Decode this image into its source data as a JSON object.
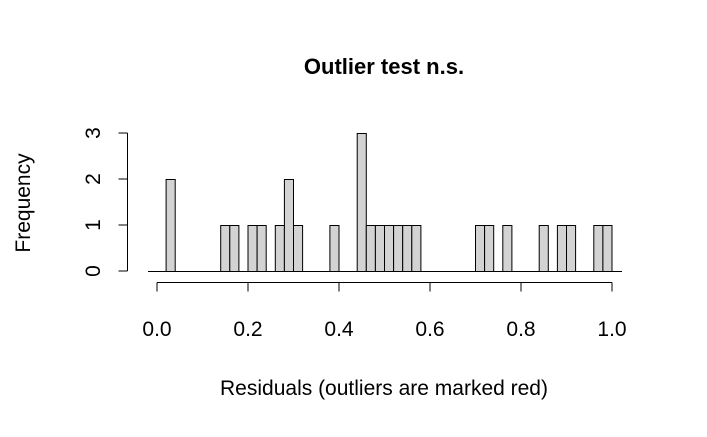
{
  "chart_data": {
    "type": "bar",
    "title": "Outlier test n.s.",
    "xlabel": "Residuals (outliers are marked red)",
    "ylabel": "Frequency",
    "xlim": [
      0,
      1
    ],
    "ylim": [
      0,
      3
    ],
    "bin_width": 0.02,
    "x_ticks": [
      "0.0",
      "0.2",
      "0.4",
      "0.6",
      "0.8",
      "1.0"
    ],
    "y_ticks": [
      "0",
      "1",
      "2",
      "3"
    ],
    "bins": [
      {
        "x0": 0.02,
        "count": 2
      },
      {
        "x0": 0.14,
        "count": 1
      },
      {
        "x0": 0.16,
        "count": 1
      },
      {
        "x0": 0.2,
        "count": 1
      },
      {
        "x0": 0.22,
        "count": 1
      },
      {
        "x0": 0.26,
        "count": 1
      },
      {
        "x0": 0.28,
        "count": 2
      },
      {
        "x0": 0.3,
        "count": 1
      },
      {
        "x0": 0.38,
        "count": 1
      },
      {
        "x0": 0.44,
        "count": 3
      },
      {
        "x0": 0.46,
        "count": 1
      },
      {
        "x0": 0.48,
        "count": 1
      },
      {
        "x0": 0.5,
        "count": 1
      },
      {
        "x0": 0.52,
        "count": 1
      },
      {
        "x0": 0.54,
        "count": 1
      },
      {
        "x0": 0.56,
        "count": 1
      },
      {
        "x0": 0.7,
        "count": 1
      },
      {
        "x0": 0.72,
        "count": 1
      },
      {
        "x0": 0.76,
        "count": 1
      },
      {
        "x0": 0.84,
        "count": 1
      },
      {
        "x0": 0.88,
        "count": 1
      },
      {
        "x0": 0.9,
        "count": 1
      },
      {
        "x0": 0.96,
        "count": 1
      },
      {
        "x0": 0.98,
        "count": 1
      }
    ],
    "colors": {
      "bar_fill": "#d3d3d3",
      "bar_stroke": "#000000",
      "outlier": "#ff0000"
    }
  }
}
